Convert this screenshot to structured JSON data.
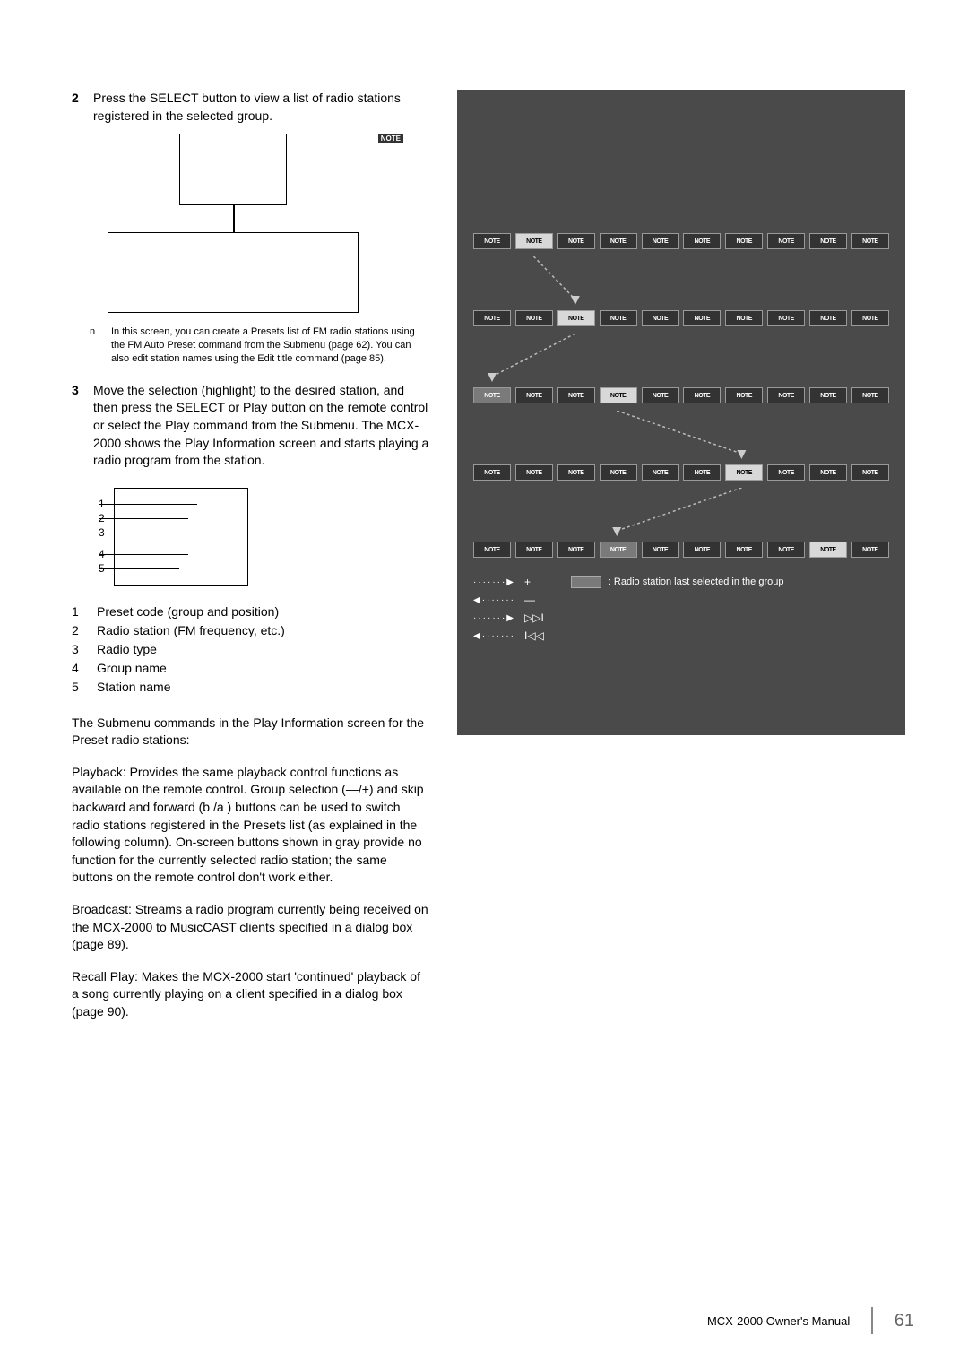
{
  "step2": {
    "num": "2",
    "text": "Press the SELECT button to view a list of radio stations registered in the selected group."
  },
  "fig1_note": "NOTE",
  "note": {
    "n": "n",
    "text": "In this screen, you can create a Presets list of FM radio stations using the FM Auto Preset command from the Submenu (page 62). You can also edit station names using the Edit title command (page 85)."
  },
  "step3": {
    "num": "3",
    "text": "Move the selection (highlight) to the desired station, and then press the SELECT or Play button on the remote control or select the Play command from the Submenu. The MCX-2000 shows the Play Information screen and starts playing a radio program from the station."
  },
  "fig2_labels": [
    "1",
    "2",
    "3",
    "4",
    "5"
  ],
  "legend": [
    {
      "n": "1",
      "t": "Preset code (group and position)"
    },
    {
      "n": "2",
      "t": "Radio station (FM frequency, etc.)"
    },
    {
      "n": "3",
      "t": "Radio type"
    },
    {
      "n": "4",
      "t": "Group name"
    },
    {
      "n": "5",
      "t": "Station name"
    }
  ],
  "submenu_intro": "The Submenu commands in the Play Information screen for the Preset radio stations:",
  "cmds": {
    "playback_name": "Playback:",
    "playback_text": "  Provides the same playback control functions as available on the remote control. Group selection (—/+) and skip backward and forward (b /a ) buttons can be used to switch radio stations registered in the Presets list (as explained in the following column). On-screen buttons shown in gray provide no function for the currently selected radio station; the same buttons on the remote control don't work either.",
    "broadcast_name": "Broadcast:",
    "broadcast_text": "  Streams a radio program currently being received on the MCX-2000 to MusicCAST clients specified in a dialog box (page 89).",
    "recall_name": "Recall Play:",
    "recall_text": "  Makes the MCX-2000 start 'continued' playback of a song currently playing on a client specified in a dialog box (page 90)."
  },
  "panel": {
    "slot": "NOTE",
    "rows": [
      {
        "on": 1,
        "last": null
      },
      {
        "on": 2,
        "last": null
      },
      {
        "on": 3,
        "last": 0
      },
      {
        "on": 6,
        "last": null
      },
      {
        "on": 8,
        "last": 3
      }
    ],
    "ctrl": {
      "plus": "+",
      "minus": "—",
      "next": "▷▷I",
      "prev": "I◁◁"
    },
    "last_legend": ": Radio station last selected in the group"
  },
  "footer": {
    "manual": "MCX-2000 Owner's Manual",
    "pageno": "61"
  },
  "colors": {
    "panel_bg": "#4a4a4a",
    "slot_bg": "#333333",
    "slot_on_bg": "#d8d8d8",
    "slot_last_bg": "#7a7a7a",
    "page_bg": "#ffffff"
  }
}
